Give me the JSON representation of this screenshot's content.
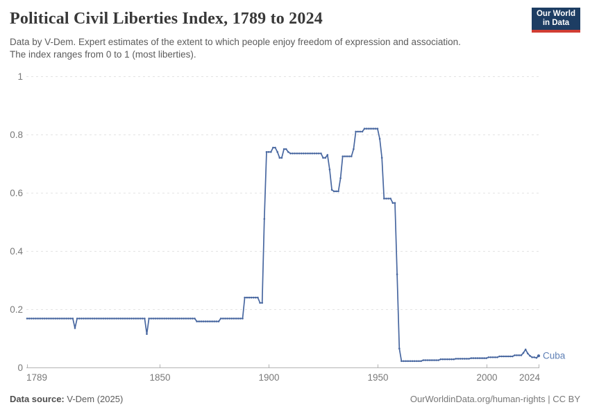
{
  "header": {
    "title": "Political Civil Liberties Index, 1789 to 2024",
    "subtitle_line1": "Data by V-Dem. Expert estimates of the extent to which people enjoy freedom of expression and association.",
    "subtitle_line2": "The index ranges from 0 to 1 (most liberties).",
    "logo_line1": "Our World",
    "logo_line2": "in Data"
  },
  "footer": {
    "source_label": "Data source:",
    "source_value": " V-Dem (2025)",
    "right_text": "OurWorldinData.org/human-rights | CC BY"
  },
  "chart_data": {
    "type": "line",
    "title": "Political Civil Liberties Index, 1789 to 2024",
    "series_name": "Cuba",
    "xlabel": "",
    "ylabel": "",
    "xlim": [
      1789,
      2024
    ],
    "ylim": [
      0,
      1
    ],
    "x_ticks": [
      1789,
      1850,
      1900,
      1950,
      2000,
      2024
    ],
    "y_ticks": [
      0,
      0.2,
      0.4,
      0.6,
      0.8,
      1
    ],
    "grid": "horizontal-dashed",
    "legend_position": "end-of-line-label",
    "line_color": "#4867a0",
    "label_color": "#5d7fb5",
    "grid_color": "#e3e3e3",
    "axis_color": "#b3b3b3",
    "tick_label_color": "#787878",
    "series_runs": [
      {
        "from": 1789,
        "to": 1810,
        "value": 0.168
      },
      {
        "from": 1811,
        "to": 1811,
        "value": 0.135
      },
      {
        "from": 1812,
        "to": 1843,
        "value": 0.168
      },
      {
        "from": 1844,
        "to": 1844,
        "value": 0.115
      },
      {
        "from": 1845,
        "to": 1866,
        "value": 0.168
      },
      {
        "from": 1867,
        "to": 1877,
        "value": 0.158
      },
      {
        "from": 1878,
        "to": 1888,
        "value": 0.168
      },
      {
        "from": 1889,
        "to": 1895,
        "value": 0.24
      },
      {
        "from": 1896,
        "to": 1897,
        "value": 0.222
      },
      {
        "from": 1898,
        "to": 1898,
        "value": 0.51
      },
      {
        "from": 1899,
        "to": 1901,
        "value": 0.74
      },
      {
        "from": 1902,
        "to": 1903,
        "value": 0.755
      },
      {
        "from": 1904,
        "to": 1904,
        "value": 0.74
      },
      {
        "from": 1905,
        "to": 1906,
        "value": 0.72
      },
      {
        "from": 1907,
        "to": 1908,
        "value": 0.75
      },
      {
        "from": 1909,
        "to": 1909,
        "value": 0.74
      },
      {
        "from": 1910,
        "to": 1924,
        "value": 0.735
      },
      {
        "from": 1925,
        "to": 1926,
        "value": 0.72
      },
      {
        "from": 1927,
        "to": 1927,
        "value": 0.73
      },
      {
        "from": 1928,
        "to": 1928,
        "value": 0.68
      },
      {
        "from": 1929,
        "to": 1929,
        "value": 0.61
      },
      {
        "from": 1930,
        "to": 1932,
        "value": 0.605
      },
      {
        "from": 1933,
        "to": 1933,
        "value": 0.65
      },
      {
        "from": 1934,
        "to": 1938,
        "value": 0.725
      },
      {
        "from": 1939,
        "to": 1939,
        "value": 0.75
      },
      {
        "from": 1940,
        "to": 1943,
        "value": 0.81
      },
      {
        "from": 1944,
        "to": 1950,
        "value": 0.82
      },
      {
        "from": 1951,
        "to": 1951,
        "value": 0.785
      },
      {
        "from": 1952,
        "to": 1952,
        "value": 0.72
      },
      {
        "from": 1953,
        "to": 1956,
        "value": 0.58
      },
      {
        "from": 1957,
        "to": 1958,
        "value": 0.565
      },
      {
        "from": 1959,
        "to": 1959,
        "value": 0.32
      },
      {
        "from": 1960,
        "to": 1960,
        "value": 0.065
      },
      {
        "from": 1961,
        "to": 1970,
        "value": 0.022
      },
      {
        "from": 1971,
        "to": 1978,
        "value": 0.025
      },
      {
        "from": 1979,
        "to": 1985,
        "value": 0.028
      },
      {
        "from": 1986,
        "to": 1992,
        "value": 0.03
      },
      {
        "from": 1993,
        "to": 2000,
        "value": 0.032
      },
      {
        "from": 2001,
        "to": 2005,
        "value": 0.035
      },
      {
        "from": 2006,
        "to": 2012,
        "value": 0.038
      },
      {
        "from": 2013,
        "to": 2016,
        "value": 0.042
      },
      {
        "from": 2017,
        "to": 2017,
        "value": 0.05
      },
      {
        "from": 2018,
        "to": 2018,
        "value": 0.062
      },
      {
        "from": 2019,
        "to": 2019,
        "value": 0.048
      },
      {
        "from": 2020,
        "to": 2020,
        "value": 0.04
      },
      {
        "from": 2021,
        "to": 2022,
        "value": 0.035
      },
      {
        "from": 2023,
        "to": 2023,
        "value": 0.033
      },
      {
        "from": 2024,
        "to": 2024,
        "value": 0.04
      }
    ]
  }
}
